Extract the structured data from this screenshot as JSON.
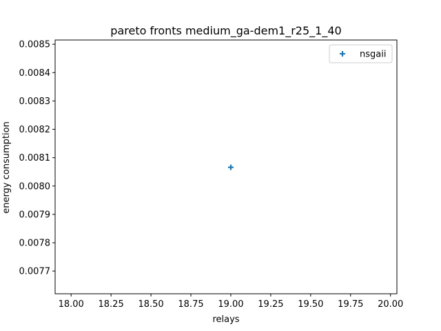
{
  "chart_data": {
    "type": "scatter",
    "title": "pareto fronts medium_ga-dem1_r25_1_40",
    "xlabel": "relays",
    "ylabel": "energy consumption",
    "xlim": [
      17.9,
      20.04
    ],
    "ylim": [
      0.00762,
      0.008515
    ],
    "xticks": [
      18.0,
      18.25,
      18.5,
      18.75,
      19.0,
      19.25,
      19.5,
      19.75,
      20.0
    ],
    "xtick_labels": [
      "18.00",
      "18.25",
      "18.50",
      "18.75",
      "19.00",
      "19.25",
      "19.50",
      "19.75",
      "20.00"
    ],
    "yticks": [
      0.0077,
      0.0078,
      0.0079,
      0.008,
      0.0081,
      0.0082,
      0.0083,
      0.0084,
      0.0085
    ],
    "ytick_labels": [
      "0.0077",
      "0.0078",
      "0.0079",
      "0.0080",
      "0.0081",
      "0.0082",
      "0.0083",
      "0.0084",
      "0.0085"
    ],
    "grid": false,
    "legend_position": "top-right",
    "series": [
      {
        "name": "nsgaii",
        "marker": "plus",
        "color": "#1f77b4",
        "points": [
          {
            "x": 19.0,
            "y": 0.008066
          }
        ]
      }
    ]
  }
}
